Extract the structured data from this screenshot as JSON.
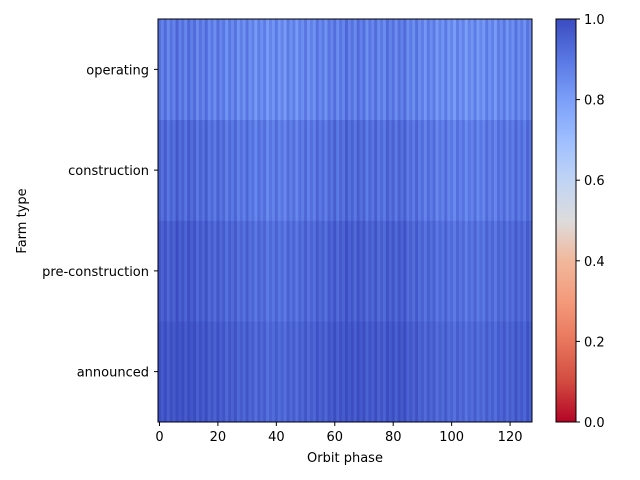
{
  "chart_data": {
    "type": "heatmap",
    "title": "",
    "xlabel": "Orbit phase",
    "ylabel": "Farm type",
    "xlim": [
      -0.5,
      127.5
    ],
    "x_ticks": [
      "0",
      "20",
      "40",
      "60",
      "80",
      "100",
      "120"
    ],
    "rows": [
      "announced",
      "pre-construction",
      "construction",
      "operating"
    ],
    "n_columns": 128,
    "colormap": "coolwarm",
    "colorbar": {
      "range": [
        0,
        1
      ],
      "ticks": [
        "0.0",
        "0.2",
        "0.4",
        "0.6",
        "0.8",
        "1.0"
      ]
    },
    "value_model": {
      "description_rows_base": {
        "announced": 0.97,
        "pre-construction": 0.95,
        "construction": 0.92,
        "operating": 0.88
      },
      "column_oscillation_amplitude": 0.05,
      "broad_variation": "lighter near x 30-50 and 90-120, darker near 5-10, 60-70, 80"
    }
  }
}
